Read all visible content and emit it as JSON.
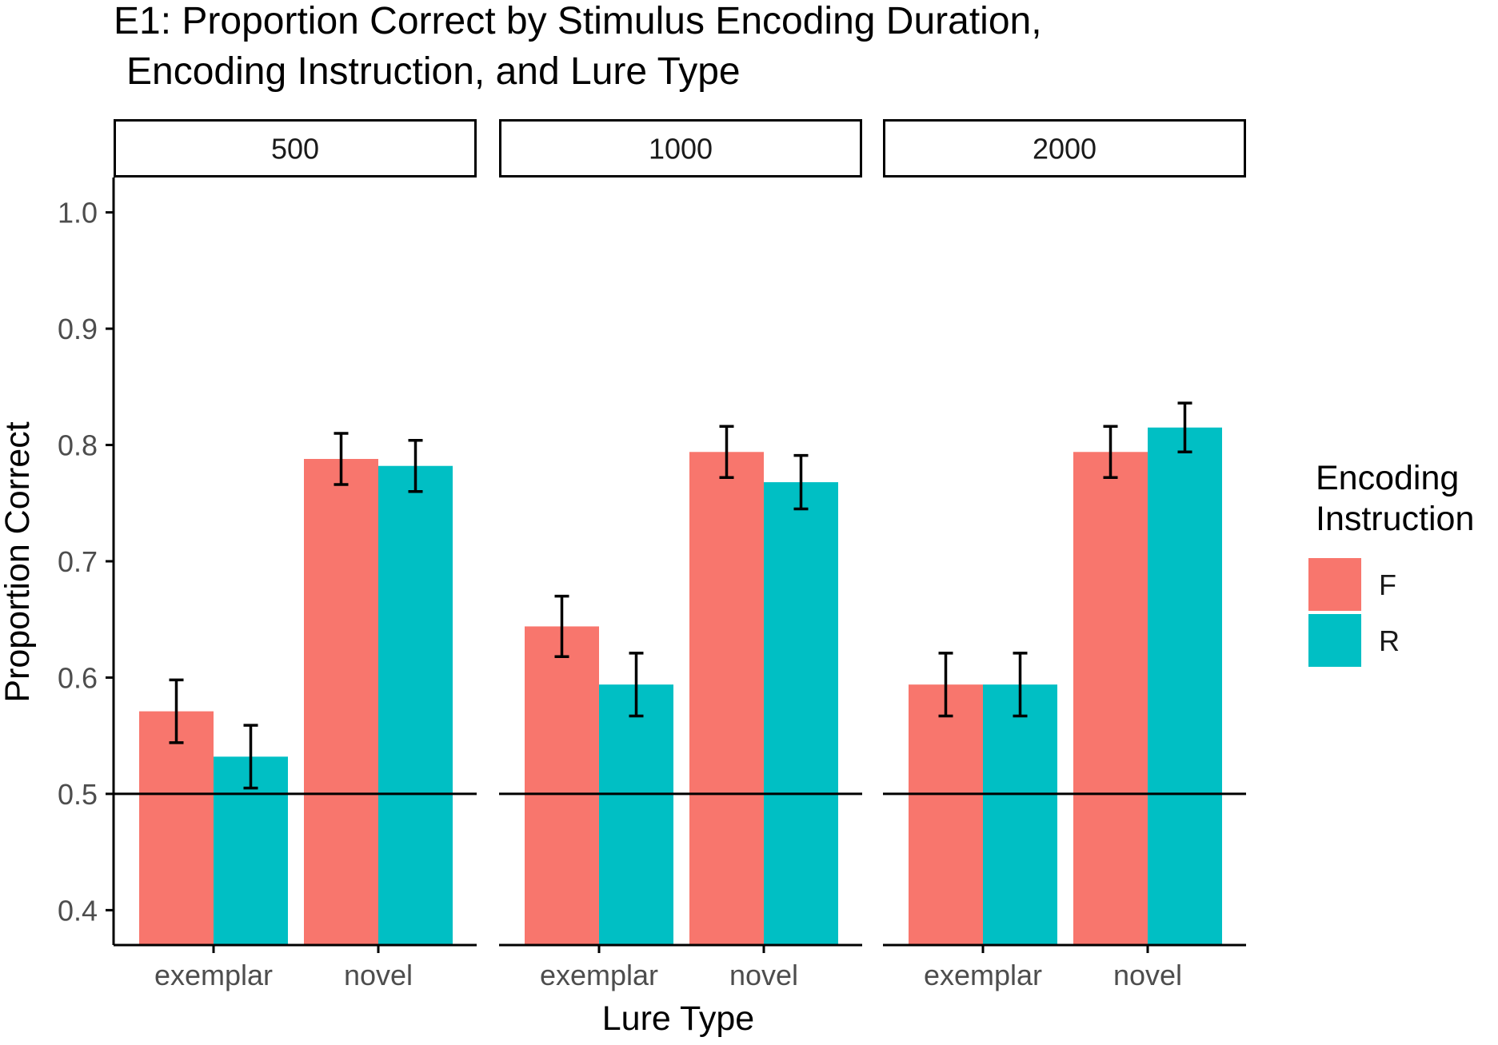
{
  "chart_data": {
    "type": "bar",
    "title_line1": "E1: Proportion Correct by Stimulus Encoding Duration,",
    "title_line2": "Encoding Instruction, and Lure Type",
    "xlabel": "Lure Type",
    "ylabel": "Proportion Correct",
    "ylim": [
      0.37,
      1.03
    ],
    "yticks": [
      "0.4",
      "0.5",
      "0.6",
      "0.7",
      "0.8",
      "0.9",
      "1.0"
    ],
    "reference_line": 0.5,
    "grid": false,
    "legend": {
      "title_line1": "Encoding",
      "title_line2": "Instruction",
      "placement": "right",
      "entries": [
        {
          "label": "F",
          "color": "#F8766D"
        },
        {
          "label": "R",
          "color": "#00BFC4"
        }
      ]
    },
    "categories": [
      "exemplar",
      "novel"
    ],
    "panels": [
      {
        "label": "500",
        "series": [
          {
            "name": "F",
            "values": [
              0.571,
              0.788
            ],
            "err_low": [
              0.544,
              0.766
            ],
            "err_high": [
              0.598,
              0.81
            ]
          },
          {
            "name": "R",
            "values": [
              0.532,
              0.782
            ],
            "err_low": [
              0.505,
              0.76
            ],
            "err_high": [
              0.559,
              0.804
            ]
          }
        ]
      },
      {
        "label": "1000",
        "series": [
          {
            "name": "F",
            "values": [
              0.644,
              0.794
            ],
            "err_low": [
              0.618,
              0.772
            ],
            "err_high": [
              0.67,
              0.816
            ]
          },
          {
            "name": "R",
            "values": [
              0.594,
              0.768
            ],
            "err_low": [
              0.567,
              0.745
            ],
            "err_high": [
              0.621,
              0.791
            ]
          }
        ]
      },
      {
        "label": "2000",
        "series": [
          {
            "name": "F",
            "values": [
              0.594,
              0.794
            ],
            "err_low": [
              0.567,
              0.772
            ],
            "err_high": [
              0.621,
              0.816
            ]
          },
          {
            "name": "R",
            "values": [
              0.594,
              0.815
            ],
            "err_low": [
              0.567,
              0.794
            ],
            "err_high": [
              0.621,
              0.836
            ]
          }
        ]
      }
    ],
    "colors": {
      "F": "#F8766D",
      "R": "#00BFC4",
      "errorbar": "#000000",
      "axis": "#000000"
    }
  }
}
